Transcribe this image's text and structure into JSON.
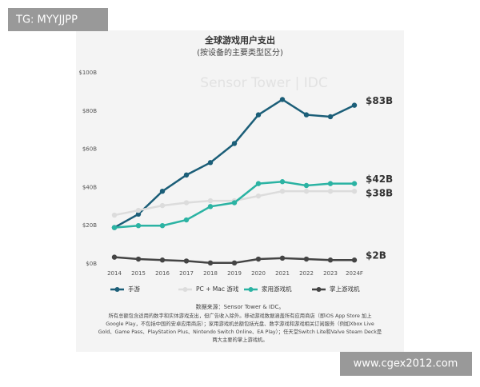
{
  "header": {
    "watermark_top": "TG: MYYJJPP",
    "watermark_bottom": "www.cgex2012.com"
  },
  "chart_data": {
    "type": "line",
    "title": "全球游戏用户支出",
    "subtitle": "(按设备的主要类型区分)",
    "brand_watermark": "Sensor Tower | IDC",
    "categories": [
      "2014",
      "2015",
      "2016",
      "2017",
      "2018",
      "2019",
      "2020",
      "2021",
      "2022",
      "2023",
      "2024F"
    ],
    "ylim": [
      0,
      100
    ],
    "yticks": [
      {
        "value": 0,
        "label": "$0B"
      },
      {
        "value": 20,
        "label": "$20B"
      },
      {
        "value": 40,
        "label": "$40B"
      },
      {
        "value": 60,
        "label": "$60B"
      },
      {
        "value": 80,
        "label": "$80B"
      },
      {
        "value": 100,
        "label": "$100B"
      }
    ],
    "grid": false,
    "series": [
      {
        "name": "手游",
        "color": "#1b5e78",
        "values": [
          19,
          26,
          38,
          46.5,
          53,
          63,
          78,
          86,
          78,
          77,
          83
        ],
        "value_labels": [
          null,
          null,
          null,
          null,
          null,
          null,
          null,
          null,
          null,
          null,
          "$83B"
        ]
      },
      {
        "name": "PC + Mac 游戏",
        "color": "#dcdcdc",
        "values": [
          25.5,
          28,
          30.5,
          32,
          33,
          33,
          35.5,
          38,
          38,
          38,
          38
        ],
        "value_labels": [
          null,
          null,
          null,
          null,
          null,
          null,
          null,
          null,
          null,
          null,
          "$38B"
        ]
      },
      {
        "name": "家用游戏机",
        "color": "#2bb3a3",
        "values": [
          19,
          20,
          20,
          23,
          30,
          32,
          42,
          43,
          41,
          42,
          42
        ],
        "value_labels": [
          null,
          null,
          null,
          null,
          null,
          null,
          null,
          null,
          null,
          null,
          "$42B"
        ]
      },
      {
        "name": "掌上游戏机",
        "color": "#444444",
        "values": [
          3.5,
          2.5,
          2,
          1.5,
          0.5,
          0.5,
          2.5,
          3,
          2.5,
          2,
          2
        ],
        "value_labels": [
          null,
          null,
          null,
          null,
          null,
          null,
          null,
          null,
          null,
          null,
          "$2B"
        ]
      }
    ],
    "legend": "bottom",
    "source": "数据来源：Sensor Tower & IDC。",
    "note_lines": [
      "所有总额包含适用的数字和实体游戏支出，但广告收入除外。移动游戏数据涵盖所有应用商店（即iOS App Store 加上",
      "Google Play，不包括中国的安卓应用商店）；家用游戏机总额包括光盘、数字游戏和游戏相关订阅服务（例如Xbox Live",
      "Gold、Game Pass、PlayStation Plus、Nintendo Switch Online、EA Play）；任天堂Switch Lite和Valve Steam Deck是",
      "两大主要的掌上游戏机。"
    ]
  }
}
